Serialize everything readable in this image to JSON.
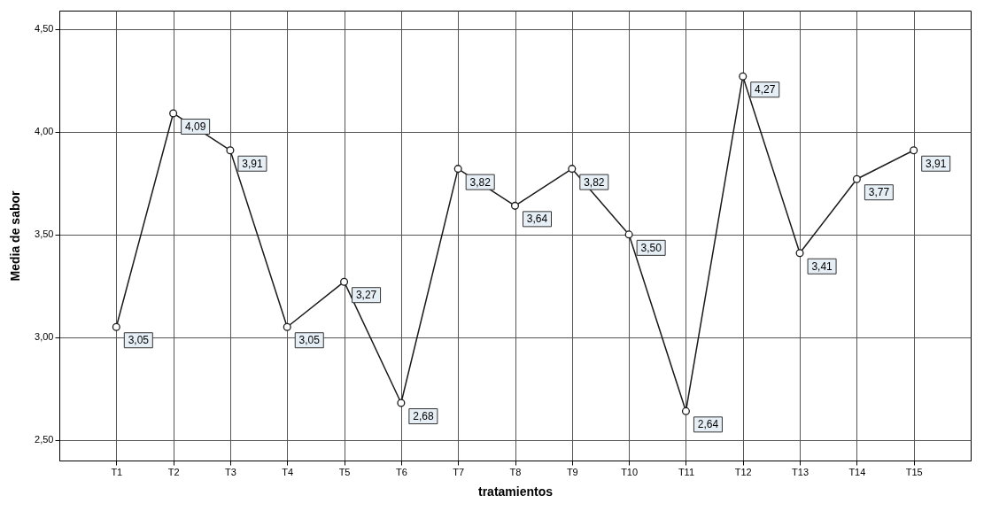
{
  "chart_data": {
    "type": "line",
    "xlabel": "tratamientos",
    "ylabel": "Media de sabor",
    "categories": [
      "T1",
      "T2",
      "T3",
      "T4",
      "T5",
      "T6",
      "T7",
      "T8",
      "T9",
      "T10",
      "T11",
      "T12",
      "T13",
      "T14",
      "T15"
    ],
    "series": [
      {
        "color": "#1a1a1a",
        "values": [
          3.05,
          4.09,
          3.91,
          3.05,
          3.27,
          2.68,
          3.82,
          3.64,
          3.82,
          3.5,
          2.64,
          4.27,
          3.41,
          3.77,
          3.91
        ],
        "value_labels": [
          "3,05",
          "4,09",
          "3,91",
          "3,05",
          "3,27",
          "2,68",
          "3,82",
          "3,64",
          "3,82",
          "3,50",
          "2,64",
          "4,27",
          "3,41",
          "3,77",
          "3,91"
        ]
      }
    ],
    "ylim": [
      2.4,
      4.59
    ],
    "yticks": [
      {
        "value": 2.5,
        "label": "2,50"
      },
      {
        "value": 3,
        "label": "3,00"
      },
      {
        "value": 3.5,
        "label": "3,50"
      },
      {
        "value": 4,
        "label": "4,00"
      },
      {
        "value": 4.5,
        "label": "4,50"
      }
    ],
    "grid": true,
    "marker": "circle",
    "line_style": "solid"
  }
}
